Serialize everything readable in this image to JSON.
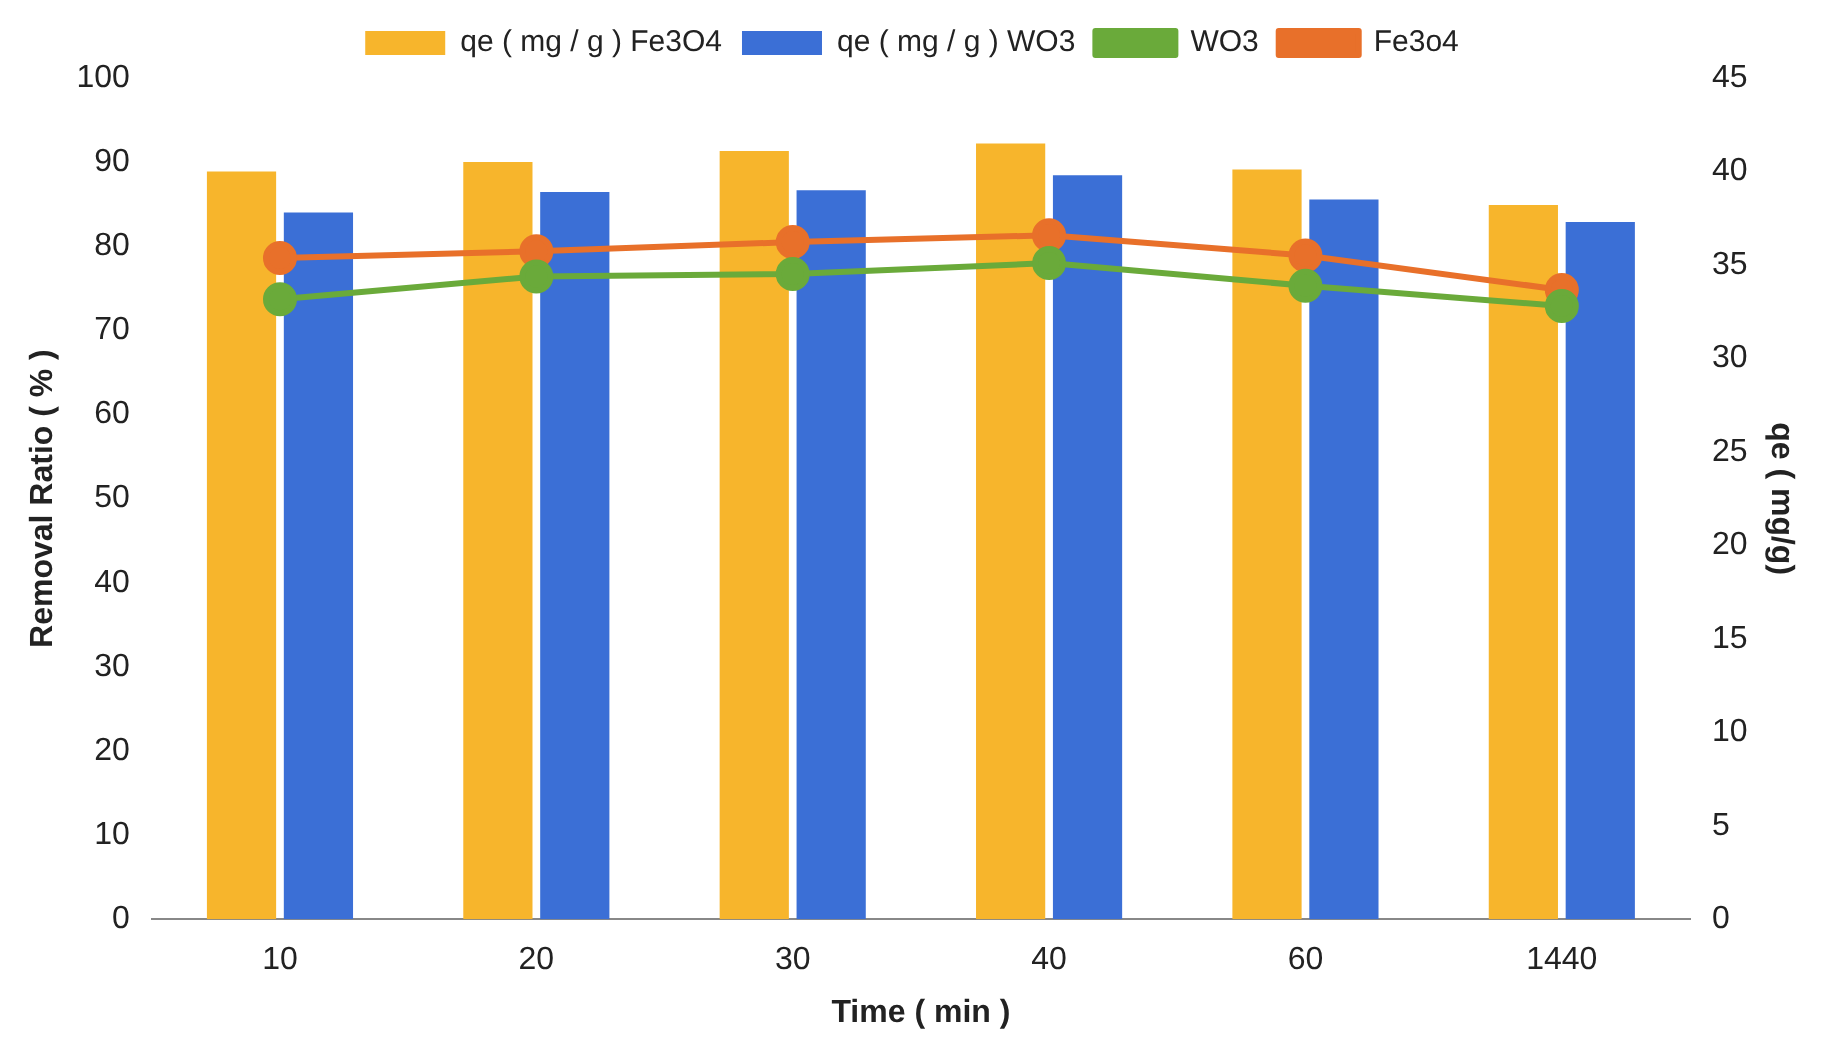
{
  "chart_data": {
    "type": "bar",
    "categories": [
      "10",
      "20",
      "30",
      "40",
      "60",
      "1440"
    ],
    "xlabel": "Time ( min )",
    "ylabel": "Removal Ratio ( % )",
    "y2label": "qe ( mg/g)",
    "ylim": [
      0,
      100
    ],
    "yticks": [
      0,
      10,
      20,
      30,
      40,
      50,
      60,
      70,
      80,
      90,
      100
    ],
    "y2lim": [
      0,
      45
    ],
    "y2ticks": [
      0,
      5,
      10,
      15,
      20,
      25,
      30,
      35,
      40,
      45
    ],
    "grid": false,
    "legend": "top",
    "marker": "circle",
    "series": [
      {
        "name": "qe ( mg / g ) Fe3O4",
        "axis": "y2",
        "color": "#f7b52c",
        "values": [
          40.0,
          40.5,
          41.1,
          41.5,
          40.1,
          38.2
        ]
      },
      {
        "name": "qe ( mg / g ) WO3",
        "axis": "y2",
        "color": "#3b6fd6",
        "values": [
          37.8,
          38.9,
          39.0,
          39.8,
          38.5,
          37.3
        ]
      },
      {
        "name": "WO3",
        "type": "line",
        "color": "#6aaa3a",
        "values": [
          73.7,
          76.4,
          76.7,
          78.0,
          75.3,
          72.9
        ]
      },
      {
        "name": "Fe3o4",
        "type": "line",
        "color": "#e8702a",
        "values": [
          78.6,
          79.4,
          80.5,
          81.3,
          78.9,
          74.8
        ]
      }
    ]
  }
}
